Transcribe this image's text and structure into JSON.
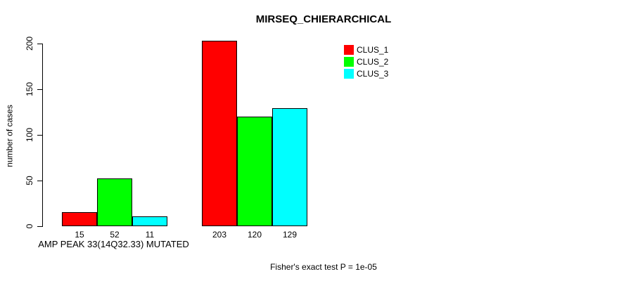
{
  "chart_data": {
    "type": "bar",
    "title": "MIRSEQ_CHIERARCHICAL",
    "ylabel": "number of cases",
    "xlabel": "AMP PEAK 33(14Q32.33) MUTATED",
    "footnote": "Fisher's exact test P = 1e-05",
    "ylim": [
      0,
      200
    ],
    "yticks": [
      0,
      50,
      100,
      150,
      200
    ],
    "grid": false,
    "legend_position": "top-right",
    "legend": [
      {
        "label": "CLUS_1",
        "color": "#ff0000"
      },
      {
        "label": "CLUS_2",
        "color": "#00ff00"
      },
      {
        "label": "CLUS_3",
        "color": "#00ffff"
      }
    ],
    "categories": [
      "MUTATED",
      ""
    ],
    "series": [
      {
        "name": "CLUS_1",
        "color": "#ff0000",
        "values": [
          15,
          203
        ]
      },
      {
        "name": "CLUS_2",
        "color": "#00ff00",
        "values": [
          52,
          120
        ]
      },
      {
        "name": "CLUS_3",
        "color": "#00ffff",
        "values": [
          11,
          129
        ]
      }
    ],
    "bar_value_labels": [
      [
        15,
        52,
        11
      ],
      [
        203,
        120,
        129
      ]
    ]
  }
}
